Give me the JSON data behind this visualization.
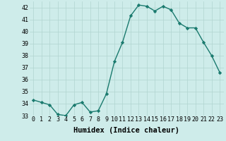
{
  "x": [
    0,
    1,
    2,
    3,
    4,
    5,
    6,
    7,
    8,
    9,
    10,
    11,
    12,
    13,
    14,
    15,
    16,
    17,
    18,
    19,
    20,
    21,
    22,
    23
  ],
  "y": [
    34.3,
    34.1,
    33.9,
    33.1,
    33.0,
    33.9,
    34.1,
    33.3,
    33.4,
    34.8,
    37.5,
    39.1,
    41.3,
    42.2,
    42.1,
    41.7,
    42.1,
    41.8,
    40.7,
    40.3,
    40.3,
    39.1,
    38.0,
    36.6
  ],
  "line_color": "#1a7a6e",
  "marker": "D",
  "marker_size": 2.2,
  "bg_color": "#ceecea",
  "grid_color": "#b0d4d0",
  "xlabel": "Humidex (Indice chaleur)",
  "ylim": [
    33,
    42.5
  ],
  "xlim": [
    -0.5,
    23.5
  ],
  "yticks": [
    33,
    34,
    35,
    36,
    37,
    38,
    39,
    40,
    41,
    42
  ],
  "xticks": [
    0,
    1,
    2,
    3,
    4,
    5,
    6,
    7,
    8,
    9,
    10,
    11,
    12,
    13,
    14,
    15,
    16,
    17,
    18,
    19,
    20,
    21,
    22,
    23
  ],
  "xlabel_fontsize": 7.5,
  "tick_fontsize": 6.0,
  "line_width": 1.0
}
